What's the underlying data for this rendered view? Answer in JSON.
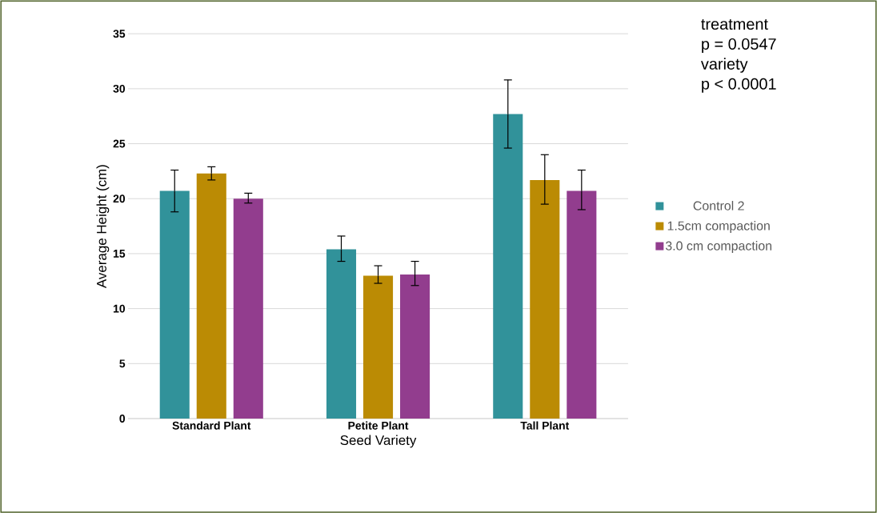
{
  "chart_data": {
    "type": "bar",
    "xlabel": "Seed Variety",
    "ylabel": "Average Height (cm)",
    "categories": [
      "Standard Plant",
      "Petite Plant",
      "Tall Plant"
    ],
    "series": [
      {
        "name": "Control 2",
        "color": "#31929a",
        "values": [
          20.7,
          15.4,
          27.7
        ],
        "errors": [
          [
            18.8,
            22.6
          ],
          [
            14.3,
            16.6
          ],
          [
            24.6,
            30.8
          ]
        ]
      },
      {
        "name": "1.5cm compaction",
        "color": "#bb8b04",
        "values": [
          22.3,
          13.0,
          21.7
        ],
        "errors": [
          [
            21.7,
            22.9
          ],
          [
            12.3,
            13.9
          ],
          [
            19.5,
            24.0
          ]
        ]
      },
      {
        "name": "3.0 cm compaction",
        "color": "#923d8e",
        "values": [
          20.0,
          13.1,
          20.7
        ],
        "errors": [
          [
            19.6,
            20.5
          ],
          [
            12.1,
            14.3
          ],
          [
            19.0,
            22.6
          ]
        ]
      }
    ],
    "ylim": [
      0,
      35
    ],
    "yticks": [
      0,
      5,
      10,
      15,
      20,
      25,
      30,
      35
    ],
    "grid": "y",
    "legend": "right",
    "annotations": [
      "treatment",
      "p = 0.0547",
      "variety",
      "p < 0.0001"
    ]
  }
}
